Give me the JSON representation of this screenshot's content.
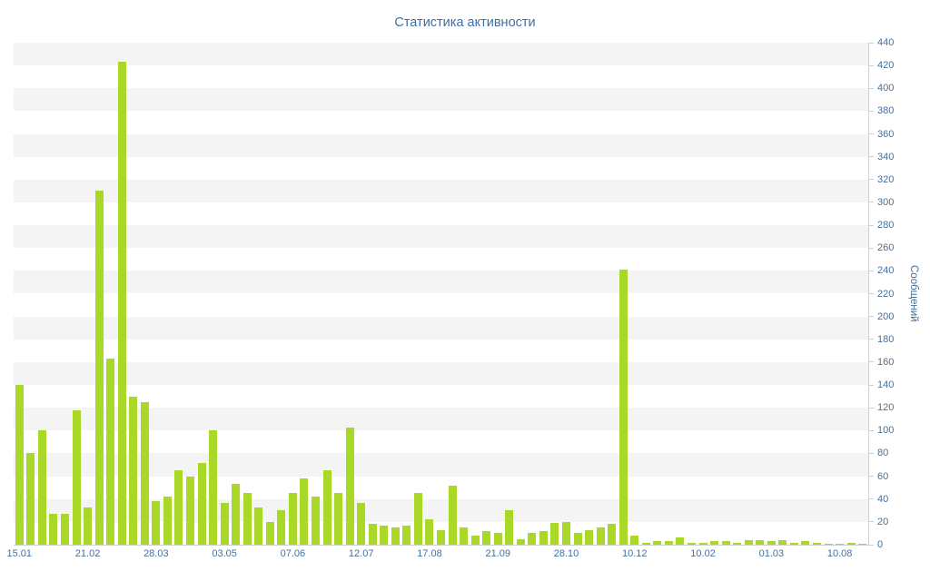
{
  "title": "Статистика активности",
  "chart_data": {
    "type": "bar",
    "title": "Статистика активности",
    "xlabel": "",
    "ylabel": "Сообщений",
    "ylim": [
      0,
      440
    ],
    "y_step": 20,
    "grid": "striped-bands",
    "legend": "none",
    "bar_color": "#a9d829",
    "stripe_color": "#f4f4f4",
    "axis_text_color": "#44719c",
    "title_color": "#3d6fa6",
    "values": [
      140,
      80,
      100,
      27,
      27,
      118,
      33,
      310,
      163,
      423,
      130,
      125,
      38,
      42,
      65,
      60,
      72,
      100,
      37,
      53,
      45,
      33,
      20,
      30,
      45,
      58,
      42,
      65,
      45,
      103,
      37,
      18,
      17,
      15,
      17,
      45,
      22,
      13,
      52,
      15,
      8,
      12,
      10,
      30,
      5,
      10,
      12,
      19,
      20,
      10,
      13,
      15,
      18,
      241,
      8,
      2,
      3,
      3,
      6,
      2,
      2,
      3,
      3,
      2,
      4,
      4,
      3,
      4,
      2,
      3,
      2,
      1,
      1,
      2,
      1
    ],
    "x_tick_indices": [
      0,
      6,
      12,
      18,
      24,
      30,
      36,
      42,
      48,
      54,
      60,
      66,
      72
    ],
    "x_tick_labels": [
      "15.01",
      "21.02",
      "28.03",
      "03.05",
      "07.06",
      "12.07",
      "17.08",
      "21.09",
      "28.10",
      "10.12",
      "10.02",
      "01.03",
      "10.08"
    ],
    "y_tick_labels": [
      "0",
      "20",
      "40",
      "60",
      "80",
      "100",
      "120",
      "140",
      "160",
      "180",
      "200",
      "220",
      "240",
      "260",
      "280",
      "300",
      "320",
      "340",
      "360",
      "380",
      "400",
      "420",
      "440"
    ]
  }
}
